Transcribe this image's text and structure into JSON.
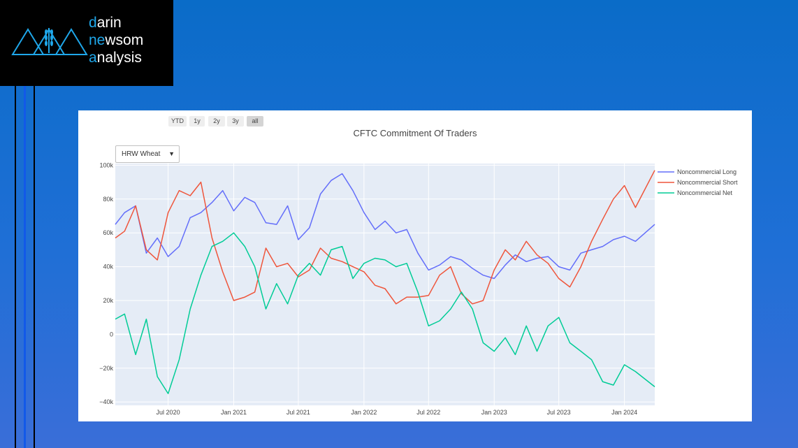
{
  "logo": {
    "line1_acc": "d",
    "line1_rest": "arin",
    "line2_acc": "ne",
    "line2_mid": "w",
    "line2_rest": "som",
    "line3_acc": "a",
    "line3_rest": "nalysis"
  },
  "range_selector": [
    "YTD",
    "1y",
    "2y",
    "3y",
    "all"
  ],
  "dropdown": {
    "selected": "HRW Wheat"
  },
  "colors": {
    "long": "#636efa",
    "short": "#ef553b",
    "net": "#00cc96",
    "plot_bg": "#e5ecf6",
    "accent": "#1fa7ea"
  },
  "chart_data": {
    "type": "line",
    "title": "CFTC Commitment Of Traders",
    "xlabel": "",
    "ylabel": "",
    "x_ticks": [
      "Jul 2020",
      "Jan 2021",
      "Jul 2021",
      "Jan 2022",
      "Jul 2022",
      "Jan 2023",
      "Jul 2023",
      "Jan 2024"
    ],
    "y_ticks": [
      "100k",
      "80k",
      "60k",
      "40k",
      "20k",
      "0",
      "−20k",
      "−40k"
    ],
    "ylim": [
      -42000,
      101000
    ],
    "xlim": [
      "2020-02-04",
      "2024-03-26"
    ],
    "legend_position": "right",
    "series": [
      {
        "name": "Noncommercial Long",
        "x": [
          "2020-02-04",
          "2020-03-01",
          "2020-04-01",
          "2020-05-01",
          "2020-06-01",
          "2020-07-01",
          "2020-08-01",
          "2020-09-01",
          "2020-10-01",
          "2020-11-01",
          "2020-12-01",
          "2021-01-01",
          "2021-02-01",
          "2021-03-01",
          "2021-04-01",
          "2021-05-01",
          "2021-06-01",
          "2021-07-01",
          "2021-08-01",
          "2021-09-01",
          "2021-10-01",
          "2021-11-01",
          "2021-12-01",
          "2022-01-01",
          "2022-02-01",
          "2022-03-01",
          "2022-04-01",
          "2022-05-01",
          "2022-06-01",
          "2022-07-01",
          "2022-08-01",
          "2022-09-01",
          "2022-10-01",
          "2022-11-01",
          "2022-12-01",
          "2023-01-01",
          "2023-02-01",
          "2023-03-01",
          "2023-04-01",
          "2023-05-01",
          "2023-06-01",
          "2023-07-01",
          "2023-08-01",
          "2023-09-01",
          "2023-10-01",
          "2023-11-01",
          "2023-12-01",
          "2024-01-01",
          "2024-02-01",
          "2024-03-26"
        ],
        "y": [
          65000,
          72000,
          76000,
          48000,
          57000,
          46000,
          52000,
          69000,
          72000,
          78000,
          85000,
          73000,
          81000,
          78000,
          66000,
          65000,
          76000,
          56000,
          63000,
          83000,
          91000,
          95000,
          85000,
          72000,
          62000,
          67000,
          60000,
          62000,
          48000,
          38000,
          41000,
          46000,
          44000,
          39000,
          35000,
          33000,
          41000,
          47000,
          43000,
          45000,
          46000,
          40000,
          38000,
          48000,
          50000,
          52000,
          56000,
          58000,
          55000,
          65000
        ]
      },
      {
        "name": "Noncommercial Short",
        "x": [
          "2020-02-04",
          "2020-03-01",
          "2020-04-01",
          "2020-05-01",
          "2020-06-01",
          "2020-07-01",
          "2020-08-01",
          "2020-09-01",
          "2020-10-01",
          "2020-11-01",
          "2020-12-01",
          "2021-01-01",
          "2021-02-01",
          "2021-03-01",
          "2021-04-01",
          "2021-05-01",
          "2021-06-01",
          "2021-07-01",
          "2021-08-01",
          "2021-09-01",
          "2021-10-01",
          "2021-11-01",
          "2021-12-01",
          "2022-01-01",
          "2022-02-01",
          "2022-03-01",
          "2022-04-01",
          "2022-05-01",
          "2022-06-01",
          "2022-07-01",
          "2022-08-01",
          "2022-09-01",
          "2022-10-01",
          "2022-11-01",
          "2022-12-01",
          "2023-01-01",
          "2023-02-01",
          "2023-03-01",
          "2023-04-01",
          "2023-05-01",
          "2023-06-01",
          "2023-07-01",
          "2023-08-01",
          "2023-09-01",
          "2023-10-01",
          "2023-11-01",
          "2023-12-01",
          "2024-01-01",
          "2024-02-01",
          "2024-03-26"
        ],
        "y": [
          57000,
          61000,
          76000,
          50000,
          44000,
          72000,
          85000,
          82000,
          90000,
          57000,
          37000,
          20000,
          22000,
          25000,
          51000,
          40000,
          42000,
          34000,
          38000,
          51000,
          45000,
          43000,
          40000,
          37000,
          29000,
          27000,
          18000,
          22000,
          22000,
          23000,
          35000,
          40000,
          24000,
          18000,
          20000,
          38000,
          50000,
          44000,
          55000,
          47000,
          42000,
          33000,
          28000,
          40000,
          55000,
          68000,
          80000,
          88000,
          75000,
          97000
        ]
      },
      {
        "name": "Noncommercial Net",
        "x": [
          "2020-02-04",
          "2020-03-01",
          "2020-04-01",
          "2020-05-01",
          "2020-06-01",
          "2020-07-01",
          "2020-08-01",
          "2020-09-01",
          "2020-10-01",
          "2020-11-01",
          "2020-12-01",
          "2021-01-01",
          "2021-02-01",
          "2021-03-01",
          "2021-04-01",
          "2021-05-01",
          "2021-06-01",
          "2021-07-01",
          "2021-08-01",
          "2021-09-01",
          "2021-10-01",
          "2021-11-01",
          "2021-12-01",
          "2022-01-01",
          "2022-02-01",
          "2022-03-01",
          "2022-04-01",
          "2022-05-01",
          "2022-06-01",
          "2022-07-01",
          "2022-08-01",
          "2022-09-01",
          "2022-10-01",
          "2022-11-01",
          "2022-12-01",
          "2023-01-01",
          "2023-02-01",
          "2023-03-01",
          "2023-04-01",
          "2023-05-01",
          "2023-06-01",
          "2023-07-01",
          "2023-08-01",
          "2023-09-01",
          "2023-10-01",
          "2023-11-01",
          "2023-12-01",
          "2024-01-01",
          "2024-02-01",
          "2024-03-26"
        ],
        "y": [
          9000,
          12000,
          -12000,
          9000,
          -25000,
          -35000,
          -15000,
          15000,
          35000,
          52000,
          55000,
          60000,
          52000,
          40000,
          15000,
          30000,
          18000,
          35000,
          42000,
          35000,
          50000,
          52000,
          33000,
          42000,
          45000,
          44000,
          40000,
          42000,
          25000,
          5000,
          8000,
          15000,
          25000,
          15000,
          -5000,
          -10000,
          -2000,
          -12000,
          5000,
          -10000,
          5000,
          10000,
          -5000,
          -10000,
          -15000,
          -28000,
          -30000,
          -18000,
          -22000,
          -31000
        ]
      }
    ]
  }
}
